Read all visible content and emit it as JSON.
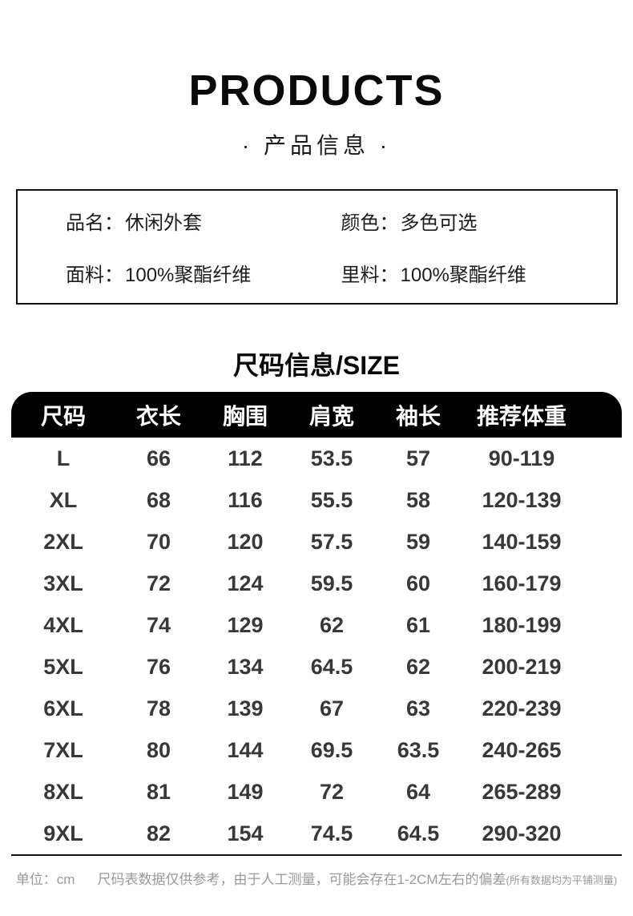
{
  "page": {
    "title": "PRODUCTS",
    "subtitle": "· 产品信息 ·"
  },
  "product_info": {
    "fields": [
      {
        "label": "品名：",
        "value": "休闲外套"
      },
      {
        "label": "颜色：",
        "value": "多色可选"
      },
      {
        "label": "面料：",
        "value": "100%聚酯纤维"
      },
      {
        "label": "里料：",
        "value": "100%聚酯纤维"
      }
    ]
  },
  "size_section": {
    "heading": "尺码信息/SIZE",
    "table": {
      "headers": [
        "尺码",
        "衣长",
        "胸围",
        "肩宽",
        "袖长",
        "推荐体重"
      ],
      "rows": [
        [
          "L",
          "66",
          "112",
          "53.5",
          "57",
          "90-119"
        ],
        [
          "XL",
          "68",
          "116",
          "55.5",
          "58",
          "120-139"
        ],
        [
          "2XL",
          "70",
          "120",
          "57.5",
          "59",
          "140-159"
        ],
        [
          "3XL",
          "72",
          "124",
          "59.5",
          "60",
          "160-179"
        ],
        [
          "4XL",
          "74",
          "129",
          "62",
          "61",
          "180-199"
        ],
        [
          "5XL",
          "76",
          "134",
          "64.5",
          "62",
          "200-219"
        ],
        [
          "6XL",
          "78",
          "139",
          "67",
          "63",
          "220-239"
        ],
        [
          "7XL",
          "80",
          "144",
          "69.5",
          "63.5",
          "240-265"
        ],
        [
          "8XL",
          "81",
          "149",
          "72",
          "64",
          "265-289"
        ],
        [
          "9XL",
          "82",
          "154",
          "74.5",
          "64.5",
          "290-320"
        ]
      ]
    },
    "footnote": {
      "unit": "单位：cm",
      "note": "尺码表数据仅供参考，由于人工测量，可能会存在1-2CM左右的偏差",
      "note_small": "(所有数据均为平铺测量)"
    }
  },
  "colors": {
    "header_bar_bg": "#000000",
    "header_bar_text": "#ffffff",
    "table_text": "#383838",
    "text_primary": "#111111",
    "footnote_text": "#999999",
    "border": "#111111"
  }
}
